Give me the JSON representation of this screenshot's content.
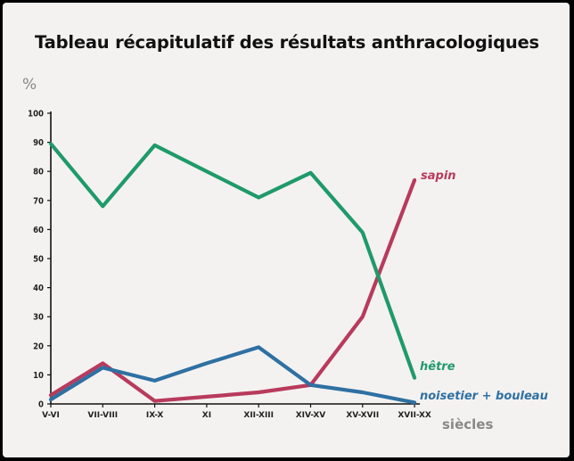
{
  "chart_data": {
    "type": "line",
    "title": "Tableau récapitulatif des résultats anthracologiques",
    "ylabel": "%",
    "xlabel": "siècles",
    "ylim": [
      0,
      100
    ],
    "yticks": [
      0,
      10,
      20,
      30,
      40,
      50,
      60,
      70,
      80,
      90,
      100
    ],
    "categories": [
      "V-VI",
      "VII-VIII",
      "IX-X",
      "XI",
      "XII-XIII",
      "XIV-XV",
      "XV-XVII",
      "XVII-XX"
    ],
    "grid": false,
    "series": [
      {
        "name": "hêtre",
        "color": "#1f9a6a",
        "values": [
          89.5,
          68,
          89,
          80,
          71,
          79.5,
          59,
          9
        ]
      },
      {
        "name": "sapin",
        "color": "#b83a5c",
        "values": [
          3,
          14,
          1,
          2.5,
          4,
          6.5,
          30,
          77
        ]
      },
      {
        "name": "noisetier + bouleau",
        "color": "#2f70a2",
        "values": [
          1.5,
          12.5,
          8,
          14,
          19.5,
          6.5,
          4,
          0.5
        ]
      }
    ]
  }
}
